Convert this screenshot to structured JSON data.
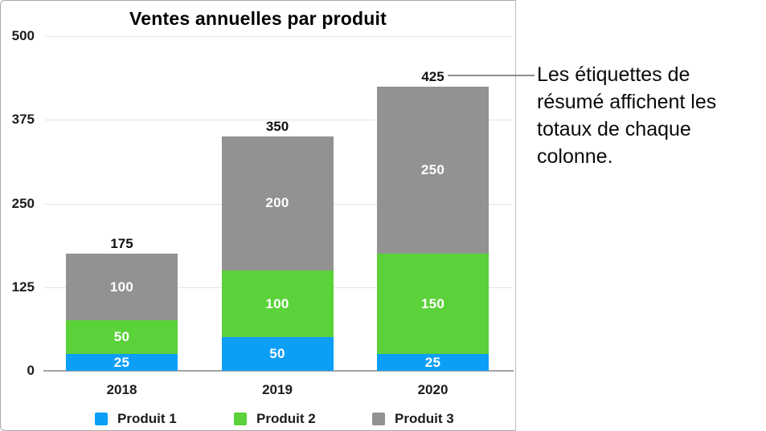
{
  "chart_data": {
    "type": "bar",
    "stacked": true,
    "title": "Ventes annuelles par produit",
    "categories": [
      "2018",
      "2019",
      "2020"
    ],
    "series": [
      {
        "name": "Produit 1",
        "color": "#0d9ff8",
        "values": [
          25,
          50,
          25
        ]
      },
      {
        "name": "Produit 2",
        "color": "#5bd13a",
        "values": [
          50,
          100,
          150
        ]
      },
      {
        "name": "Produit 3",
        "color": "#929292",
        "values": [
          100,
          200,
          250
        ]
      }
    ],
    "totals": [
      175,
      350,
      425
    ],
    "y_ticks": [
      0,
      125,
      250,
      375,
      500
    ],
    "ylim": [
      0,
      500
    ],
    "grid": true,
    "legend_position": "bottom",
    "value_labels": "inside-segments-white",
    "summary_labels": "column-totals-above-bars"
  },
  "callout": {
    "text": "Les étiquettes de résumé affichent les totaux de chaque colonne.",
    "line_color": "#8e8e8e"
  }
}
